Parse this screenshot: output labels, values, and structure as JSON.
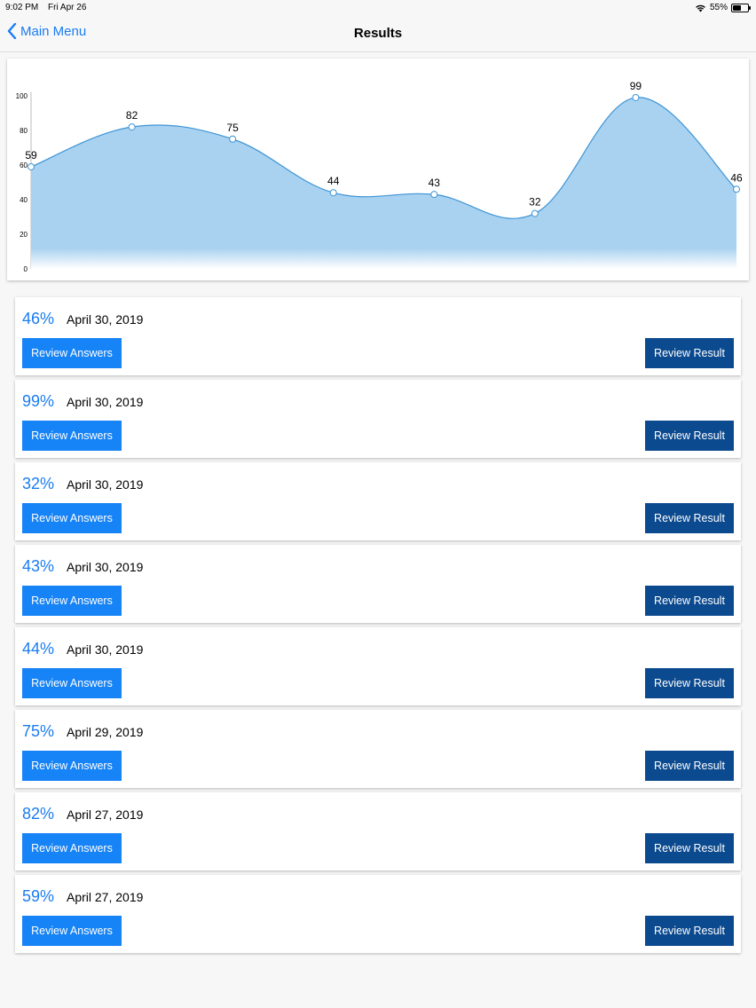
{
  "status_bar": {
    "time": "9:02 PM",
    "date": "Fri Apr 26",
    "battery": "55%",
    "battery_level": 0.55
  },
  "nav": {
    "back_label": "Main Menu",
    "title": "Results"
  },
  "colors": {
    "accent": "#1a7cf0",
    "dark_button": "#0c4a8f",
    "area_fill": "#a9d2f0",
    "line": "#3d94d6"
  },
  "chart_data": {
    "type": "area",
    "x": [
      1,
      2,
      3,
      4,
      5,
      6,
      7,
      8
    ],
    "values": [
      59,
      82,
      75,
      44,
      43,
      32,
      99,
      46
    ],
    "point_labels": [
      "59",
      "82",
      "75",
      "44",
      "43",
      "32",
      "99",
      "46"
    ],
    "y_ticks": [
      "0",
      "20",
      "40",
      "60",
      "80",
      "100"
    ],
    "ylim": [
      0,
      100
    ],
    "grid": false,
    "legend": "none"
  },
  "results": [
    {
      "score": "46%",
      "date": "April 30, 2019",
      "answers_label": "Review Answers",
      "result_label": "Review Result"
    },
    {
      "score": "99%",
      "date": "April 30, 2019",
      "answers_label": "Review Answers",
      "result_label": "Review Result"
    },
    {
      "score": "32%",
      "date": "April 30, 2019",
      "answers_label": "Review Answers",
      "result_label": "Review Result"
    },
    {
      "score": "43%",
      "date": "April 30, 2019",
      "answers_label": "Review Answers",
      "result_label": "Review Result"
    },
    {
      "score": "44%",
      "date": "April 30, 2019",
      "answers_label": "Review Answers",
      "result_label": "Review Result"
    },
    {
      "score": "75%",
      "date": "April 29, 2019",
      "answers_label": "Review Answers",
      "result_label": "Review Result"
    },
    {
      "score": "82%",
      "date": "April 27, 2019",
      "answers_label": "Review Answers",
      "result_label": "Review Result"
    },
    {
      "score": "59%",
      "date": "April 27, 2019",
      "answers_label": "Review Answers",
      "result_label": "Review Result"
    }
  ]
}
